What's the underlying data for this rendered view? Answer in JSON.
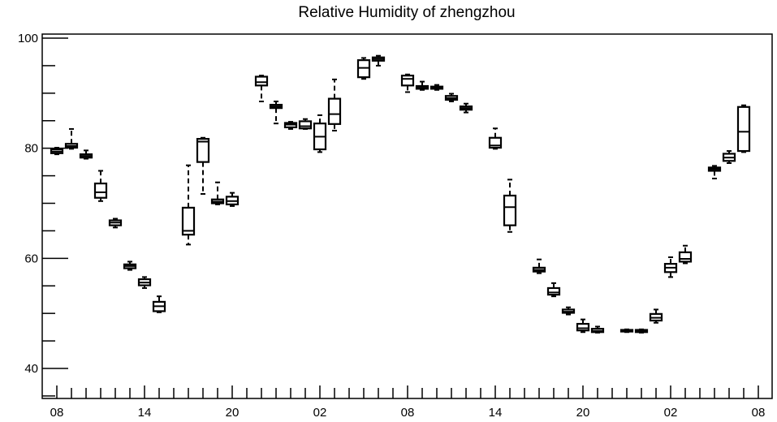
{
  "chart_data": {
    "type": "box",
    "title": "Relative Humidity of zhengzhou",
    "xlabel": "",
    "ylabel": "",
    "ylim": [
      35,
      102
    ],
    "y_ticks": [
      40,
      60,
      80,
      100
    ],
    "x_tick_labels": [
      "08",
      "14",
      "20",
      "02",
      "08",
      "14",
      "20",
      "02",
      "08"
    ],
    "x_tick_indices": [
      0,
      6,
      12,
      18,
      24,
      30,
      36,
      42,
      48
    ],
    "grid": false,
    "categories_count": 49,
    "boxes": [
      {
        "whisker_low": 78.9,
        "q1": 79.1,
        "median": 79.4,
        "q3": 79.8,
        "whisker_high": 80.1
      },
      {
        "whisker_low": 79.9,
        "q1": 80.1,
        "median": 80.4,
        "q3": 80.8,
        "whisker_high": 83.5
      },
      {
        "whisker_low": 78.1,
        "q1": 78.3,
        "median": 78.6,
        "q3": 78.9,
        "whisker_high": 79.6
      },
      {
        "whisker_low": 70.4,
        "q1": 71.0,
        "median": 72.0,
        "q3": 73.6,
        "whisker_high": 75.9
      },
      {
        "whisker_low": 65.6,
        "q1": 66.0,
        "median": 66.5,
        "q3": 66.9,
        "whisker_high": 67.2
      },
      {
        "whisker_low": 57.9,
        "q1": 58.2,
        "median": 58.6,
        "q3": 58.9,
        "whisker_high": 59.4
      },
      {
        "whisker_low": 54.6,
        "q1": 55.1,
        "median": 55.6,
        "q3": 56.2,
        "whisker_high": 56.6
      },
      {
        "whisker_low": 50.2,
        "q1": 50.4,
        "median": 51.3,
        "q3": 52.1,
        "whisker_high": 53.1
      },
      {
        "whisker_low": null,
        "q1": null,
        "median": null,
        "q3": null,
        "whisker_high": null
      },
      {
        "whisker_low": 62.5,
        "q1": 64.3,
        "median": 65.0,
        "q3": 69.2,
        "whisker_high": 76.9
      },
      {
        "whisker_low": 71.7,
        "q1": 77.5,
        "median": 81.2,
        "q3": 81.7,
        "whisker_high": 81.9
      },
      {
        "whisker_low": 69.8,
        "q1": 70.0,
        "median": 70.3,
        "q3": 70.7,
        "whisker_high": 73.8
      },
      {
        "whisker_low": 69.5,
        "q1": 69.8,
        "median": 70.4,
        "q3": 71.2,
        "whisker_high": 71.9
      },
      {
        "whisker_low": null,
        "q1": null,
        "median": null,
        "q3": null,
        "whisker_high": null
      },
      {
        "whisker_low": 88.5,
        "q1": 91.4,
        "median": 92.0,
        "q3": 93.0,
        "whisker_high": 93.2
      },
      {
        "whisker_low": 84.5,
        "q1": 87.3,
        "median": 87.6,
        "q3": 87.9,
        "whisker_high": 88.5
      },
      {
        "whisker_low": 83.5,
        "q1": 83.8,
        "median": 84.3,
        "q3": 84.6,
        "whisker_high": 84.8
      },
      {
        "whisker_low": 83.5,
        "q1": 83.6,
        "median": 84.0,
        "q3": 84.9,
        "whisker_high": 85.3
      },
      {
        "whisker_low": 79.3,
        "q1": 79.8,
        "median": 82.1,
        "q3": 84.5,
        "whisker_high": 86.0
      },
      {
        "whisker_low": 83.2,
        "q1": 84.4,
        "median": 86.2,
        "q3": 89.0,
        "whisker_high": 92.5
      },
      {
        "whisker_low": null,
        "q1": null,
        "median": null,
        "q3": null,
        "whisker_high": null
      },
      {
        "whisker_low": 92.6,
        "q1": 92.9,
        "median": 94.6,
        "q3": 96.0,
        "whisker_high": 96.4
      },
      {
        "whisker_low": 95.0,
        "q1": 95.9,
        "median": 96.2,
        "q3": 96.5,
        "whisker_high": 96.8
      },
      {
        "whisker_low": null,
        "q1": null,
        "median": null,
        "q3": null,
        "whisker_high": null
      },
      {
        "whisker_low": 90.2,
        "q1": 91.4,
        "median": 92.6,
        "q3": 93.2,
        "whisker_high": 93.4
      },
      {
        "whisker_low": 90.6,
        "q1": 90.8,
        "median": 91.0,
        "q3": 91.3,
        "whisker_high": 92.1
      },
      {
        "whisker_low": 90.6,
        "q1": 90.8,
        "median": 91.0,
        "q3": 91.2,
        "whisker_high": 91.5
      },
      {
        "whisker_low": 88.5,
        "q1": 88.8,
        "median": 89.1,
        "q3": 89.5,
        "whisker_high": 89.9
      },
      {
        "whisker_low": 86.5,
        "q1": 87.0,
        "median": 87.3,
        "q3": 87.6,
        "whisker_high": 88.1
      },
      {
        "whisker_low": null,
        "q1": null,
        "median": null,
        "q3": null,
        "whisker_high": null
      },
      {
        "whisker_low": 79.9,
        "q1": 80.1,
        "median": 80.5,
        "q3": 81.9,
        "whisker_high": 83.6
      },
      {
        "whisker_low": 64.8,
        "q1": 66.0,
        "median": 69.3,
        "q3": 71.4,
        "whisker_high": 74.3
      },
      {
        "whisker_low": null,
        "q1": null,
        "median": null,
        "q3": null,
        "whisker_high": null
      },
      {
        "whisker_low": 57.3,
        "q1": 57.6,
        "median": 57.9,
        "q3": 58.3,
        "whisker_high": 59.8
      },
      {
        "whisker_low": 53.1,
        "q1": 53.4,
        "median": 53.8,
        "q3": 54.6,
        "whisker_high": 55.5
      },
      {
        "whisker_low": 49.8,
        "q1": 50.1,
        "median": 50.3,
        "q3": 50.7,
        "whisker_high": 51.1
      },
      {
        "whisker_low": 46.6,
        "q1": 46.9,
        "median": 47.3,
        "q3": 48.1,
        "whisker_high": 48.9
      },
      {
        "whisker_low": 46.5,
        "q1": 46.6,
        "median": 46.8,
        "q3": 47.2,
        "whisker_high": 47.6
      },
      {
        "whisker_low": null,
        "q1": null,
        "median": null,
        "q3": null,
        "whisker_high": null
      },
      {
        "whisker_low": 46.6,
        "q1": 46.7,
        "median": 46.9,
        "q3": 47.0,
        "whisker_high": 47.1
      },
      {
        "whisker_low": 46.5,
        "q1": 46.6,
        "median": 46.8,
        "q3": 47.0,
        "whisker_high": 47.1
      },
      {
        "whisker_low": 48.3,
        "q1": 48.7,
        "median": 49.2,
        "q3": 49.9,
        "whisker_high": 50.7
      },
      {
        "whisker_low": 56.6,
        "q1": 57.5,
        "median": 58.3,
        "q3": 59.0,
        "whisker_high": 60.2
      },
      {
        "whisker_low": 59.1,
        "q1": 59.4,
        "median": 59.9,
        "q3": 61.1,
        "whisker_high": 62.3
      },
      {
        "whisker_low": null,
        "q1": null,
        "median": null,
        "q3": null,
        "whisker_high": null
      },
      {
        "whisker_low": 74.5,
        "q1": 75.9,
        "median": 76.2,
        "q3": 76.5,
        "whisker_high": 76.8
      },
      {
        "whisker_low": 77.3,
        "q1": 77.7,
        "median": 78.3,
        "q3": 79.0,
        "whisker_high": 79.5
      },
      {
        "whisker_low": 79.3,
        "q1": 79.5,
        "median": 83.0,
        "q3": 87.5,
        "whisker_high": 87.8
      },
      {
        "whisker_low": null,
        "q1": null,
        "median": null,
        "q3": null,
        "whisker_high": null
      }
    ]
  }
}
